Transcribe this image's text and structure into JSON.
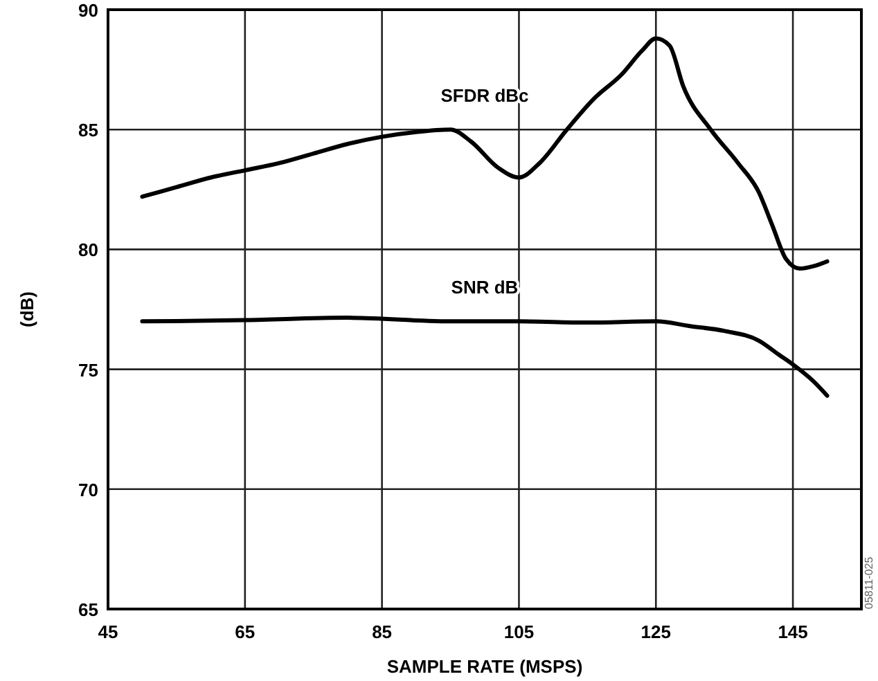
{
  "chart_data": {
    "type": "line",
    "xlabel": "SAMPLE RATE (MSPS)",
    "ylabel": "(dB)",
    "xlim": [
      45,
      155
    ],
    "xticks": [
      45,
      65,
      85,
      105,
      125,
      145
    ],
    "ylim": [
      65,
      90
    ],
    "yticks": [
      65,
      70,
      75,
      80,
      85,
      90
    ],
    "grid": true,
    "line_style": "solid",
    "series": [
      {
        "name": "SFDR dBc",
        "color": "#000000",
        "x": [
          50,
          55,
          60,
          65,
          70,
          75,
          80,
          85,
          90,
          95,
          98,
          102,
          105,
          108,
          112,
          116,
          120,
          123,
          125,
          127,
          129,
          133,
          137,
          140,
          142,
          144,
          146,
          148,
          150
        ],
        "values": [
          82.2,
          82.6,
          83.0,
          83.3,
          83.6,
          84.0,
          84.4,
          84.7,
          84.9,
          85.0,
          84.5,
          83.4,
          83.0,
          83.6,
          85.0,
          86.3,
          87.3,
          88.3,
          88.8,
          88.5,
          86.8,
          85.0,
          83.6,
          82.4,
          81.0,
          79.6,
          79.2,
          79.3,
          79.5
        ]
      },
      {
        "name": "SNR dB",
        "color": "#000000",
        "x": [
          50,
          65,
          80,
          95,
          105,
          115,
          125,
          130,
          135,
          140,
          143,
          145,
          148,
          150
        ],
        "values": [
          77.0,
          77.05,
          77.15,
          77.0,
          77.0,
          76.95,
          77.0,
          76.8,
          76.6,
          76.2,
          75.6,
          75.2,
          74.5,
          73.9
        ]
      }
    ],
    "annotations": [
      "05811-025"
    ]
  }
}
